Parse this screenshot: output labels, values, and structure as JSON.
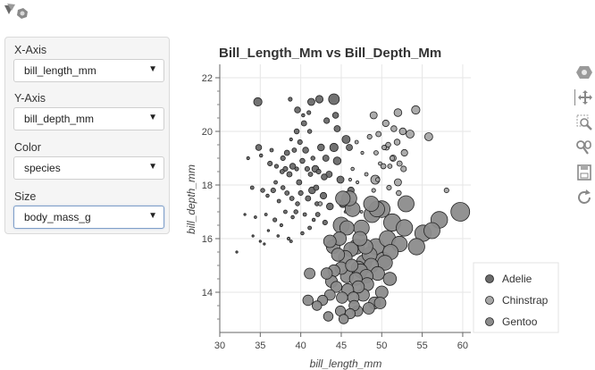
{
  "controls": {
    "x_axis": {
      "label": "X-Axis",
      "value": "bill_length_mm"
    },
    "y_axis": {
      "label": "Y-Axis",
      "value": "bill_depth_mm"
    },
    "color": {
      "label": "Color",
      "value": "species"
    },
    "size": {
      "label": "Size",
      "value": "body_mass_g"
    }
  },
  "toolbar": [
    "bokeh-logo-icon",
    "pan-icon",
    "box-zoom-icon",
    "wheel-zoom-icon",
    "save-icon",
    "reset-icon"
  ],
  "colors": {
    "Adelie": "#6a6a6a",
    "Chinstrap": "#a8a8a8",
    "Gentoo": "#8c8c8c",
    "gridline": "#e6e6e6"
  },
  "chart_data": {
    "type": "scatter",
    "title": "Bill_Length_Mm vs Bill_Depth_Mm",
    "xlabel": "bill_length_mm",
    "ylabel": "bill_depth_mm",
    "xlim": [
      30,
      61
    ],
    "ylim": [
      12.5,
      22.5
    ],
    "xticks": [
      30,
      35,
      40,
      45,
      50,
      55,
      60
    ],
    "yticks": [
      14,
      16,
      18,
      20,
      22
    ],
    "legend": {
      "position": "bottom-right",
      "entries": [
        "Adelie",
        "Chinstrap",
        "Gentoo"
      ]
    },
    "series": [
      {
        "name": "Adelie",
        "points": [
          [
            34.7,
            21.1,
            4300
          ],
          [
            38.7,
            21.2,
            3550
          ],
          [
            41.3,
            21.1,
            4100
          ],
          [
            42.3,
            21.2,
            4150
          ],
          [
            44.1,
            21.2,
            4700
          ],
          [
            39.6,
            20.8,
            3900
          ],
          [
            40.3,
            20.6,
            3450
          ],
          [
            41.0,
            20.7,
            3550
          ],
          [
            44.3,
            20.6,
            3900
          ],
          [
            43.2,
            20.4,
            3850
          ],
          [
            39.5,
            20.0,
            3750
          ],
          [
            40.4,
            20.3,
            3800
          ],
          [
            41.1,
            20.0,
            3600
          ],
          [
            44.5,
            20.1,
            3950
          ],
          [
            38.8,
            19.7,
            3400
          ],
          [
            39.9,
            19.6,
            3700
          ],
          [
            34.8,
            19.4,
            3900
          ],
          [
            36.4,
            19.3,
            3500
          ],
          [
            37.8,
            19.0,
            3700
          ],
          [
            38.3,
            19.2,
            3800
          ],
          [
            39.2,
            19.3,
            3650
          ],
          [
            40.6,
            19.3,
            3900
          ],
          [
            41.5,
            19.0,
            3600
          ],
          [
            42.5,
            19.4,
            4050
          ],
          [
            43.1,
            19.0,
            3950
          ],
          [
            44.1,
            19.4,
            4300
          ],
          [
            45.6,
            19.7,
            4250
          ],
          [
            46.0,
            19.4,
            3950
          ],
          [
            33.5,
            19.0,
            3400
          ],
          [
            35.1,
            19.1,
            3450
          ],
          [
            36.2,
            18.8,
            3700
          ],
          [
            37.0,
            18.7,
            3550
          ],
          [
            37.7,
            18.5,
            3650
          ],
          [
            38.1,
            18.6,
            3700
          ],
          [
            38.6,
            18.4,
            3800
          ],
          [
            39.0,
            18.7,
            3900
          ],
          [
            39.5,
            18.6,
            3550
          ],
          [
            40.2,
            18.9,
            3750
          ],
          [
            40.8,
            18.6,
            3700
          ],
          [
            41.2,
            18.4,
            3650
          ],
          [
            41.8,
            18.6,
            4050
          ],
          [
            42.2,
            18.5,
            3700
          ],
          [
            42.9,
            18.3,
            3900
          ],
          [
            43.5,
            18.4,
            3950
          ],
          [
            44.9,
            18.2,
            4100
          ],
          [
            46.2,
            17.8,
            4000
          ],
          [
            34.0,
            17.9,
            3500
          ],
          [
            35.3,
            17.8,
            3600
          ],
          [
            35.9,
            17.6,
            3450
          ],
          [
            36.6,
            17.8,
            3700
          ],
          [
            37.3,
            17.4,
            3500
          ],
          [
            37.8,
            17.9,
            3600
          ],
          [
            38.3,
            17.7,
            3650
          ],
          [
            38.9,
            17.5,
            3650
          ],
          [
            39.6,
            17.3,
            3600
          ],
          [
            40.0,
            17.7,
            3700
          ],
          [
            40.9,
            17.5,
            3800
          ],
          [
            41.4,
            17.8,
            4050
          ],
          [
            42.0,
            17.3,
            3600
          ],
          [
            42.8,
            17.6,
            4000
          ],
          [
            43.6,
            17.2,
            4050
          ],
          [
            45.2,
            17.3,
            4150
          ],
          [
            33.1,
            16.9,
            3200
          ],
          [
            34.4,
            16.8,
            3325
          ],
          [
            35.7,
            16.9,
            3350
          ],
          [
            36.8,
            16.7,
            3550
          ],
          [
            37.6,
            16.5,
            3400
          ],
          [
            38.1,
            17.0,
            3500
          ],
          [
            39.0,
            16.8,
            3450
          ],
          [
            40.5,
            16.9,
            3500
          ],
          [
            41.6,
            16.7,
            3450
          ],
          [
            42.1,
            16.9,
            3650
          ],
          [
            43.0,
            16.6,
            3700
          ],
          [
            34.1,
            16.1,
            3150
          ],
          [
            35.0,
            15.9,
            3200
          ],
          [
            36.0,
            16.3,
            3275
          ],
          [
            37.2,
            16.1,
            3300
          ],
          [
            38.5,
            16.0,
            3400
          ],
          [
            40.2,
            16.2,
            3450
          ],
          [
            41.1,
            16.4,
            3500
          ],
          [
            32.1,
            15.5,
            3050
          ],
          [
            35.5,
            15.8,
            3150
          ],
          [
            38.8,
            15.9,
            3350
          ],
          [
            39.4,
            17.0,
            3600
          ],
          [
            36.9,
            18.1,
            3500
          ],
          [
            39.8,
            18.1,
            3800
          ],
          [
            41.9,
            17.9,
            3800
          ],
          [
            44.5,
            18.9,
            4200
          ]
        ]
      },
      {
        "name": "Chinstrap",
        "points": [
          [
            49.0,
            20.6,
            4100
          ],
          [
            52.0,
            20.7,
            4200
          ],
          [
            54.2,
            20.8,
            4300
          ],
          [
            50.5,
            20.3,
            4000
          ],
          [
            51.5,
            20.1,
            3900
          ],
          [
            52.6,
            20.0,
            4050
          ],
          [
            55.8,
            19.8,
            4250
          ],
          [
            48.5,
            19.8,
            3700
          ],
          [
            49.6,
            19.9,
            3800
          ],
          [
            50.8,
            19.5,
            3750
          ],
          [
            51.9,
            19.6,
            3900
          ],
          [
            52.8,
            19.2,
            4000
          ],
          [
            53.5,
            19.9,
            4250
          ],
          [
            46.9,
            19.6,
            3500
          ],
          [
            47.6,
            19.2,
            3400
          ],
          [
            49.3,
            19.2,
            3650
          ],
          [
            50.3,
            19.4,
            3675
          ],
          [
            51.3,
            19.0,
            3700
          ],
          [
            52.2,
            18.8,
            3800
          ],
          [
            49.8,
            18.8,
            3500
          ],
          [
            51.0,
            18.7,
            3650
          ],
          [
            52.7,
            18.6,
            3850
          ],
          [
            46.4,
            18.6,
            3450
          ],
          [
            47.0,
            18.1,
            3400
          ],
          [
            48.1,
            18.4,
            3500
          ],
          [
            49.5,
            18.2,
            3600
          ],
          [
            50.9,
            17.9,
            3700
          ],
          [
            52.1,
            17.7,
            3750
          ],
          [
            45.5,
            17.0,
            3300
          ],
          [
            46.1,
            18.2,
            3400
          ],
          [
            47.5,
            17.0,
            3350
          ],
          [
            49.0,
            17.8,
            3550
          ],
          [
            50.2,
            18.7,
            3775
          ],
          [
            45.9,
            17.1,
            3575
          ],
          [
            42.4,
            17.3,
            3600
          ],
          [
            58.0,
            17.8,
            3700
          ],
          [
            50.6,
            19.4,
            3800
          ],
          [
            51.4,
            19.0,
            3950
          ],
          [
            49.2,
            18.2,
            4400
          ],
          [
            52.0,
            18.1,
            4100
          ]
        ]
      },
      {
        "name": "Gentoo",
        "points": [
          [
            45.0,
            16.5,
            5600
          ],
          [
            46.4,
            17.1,
            5400
          ],
          [
            47.5,
            16.4,
            5500
          ],
          [
            48.8,
            16.9,
            5600
          ],
          [
            50.0,
            17.1,
            5700
          ],
          [
            51.3,
            16.6,
            5800
          ],
          [
            55.1,
            16.2,
            5650
          ],
          [
            56.2,
            16.3,
            5600
          ],
          [
            57.1,
            16.7,
            5700
          ],
          [
            59.7,
            17.0,
            6050
          ],
          [
            49.4,
            17.1,
            5500
          ],
          [
            53.0,
            17.3,
            5600
          ],
          [
            48.7,
            17.3,
            5450
          ],
          [
            45.2,
            17.5,
            5350
          ],
          [
            44.0,
            15.7,
            5200
          ],
          [
            44.6,
            15.4,
            5100
          ],
          [
            45.5,
            15.3,
            5200
          ],
          [
            46.2,
            15.6,
            5300
          ],
          [
            46.9,
            15.7,
            5400
          ],
          [
            47.8,
            15.1,
            5500
          ],
          [
            48.5,
            15.4,
            5400
          ],
          [
            49.3,
            15.7,
            5600
          ],
          [
            50.2,
            15.2,
            5500
          ],
          [
            51.1,
            15.5,
            5450
          ],
          [
            52.2,
            15.8,
            5500
          ],
          [
            54.3,
            15.7,
            5650
          ],
          [
            43.2,
            14.7,
            4800
          ],
          [
            44.1,
            14.8,
            4900
          ],
          [
            45.0,
            14.9,
            5000
          ],
          [
            45.7,
            14.6,
            5100
          ],
          [
            46.3,
            15.0,
            5000
          ],
          [
            46.8,
            14.5,
            5050
          ],
          [
            47.4,
            14.8,
            5200
          ],
          [
            48.1,
            14.6,
            5150
          ],
          [
            48.7,
            15.0,
            5300
          ],
          [
            49.5,
            14.7,
            5200
          ],
          [
            50.4,
            15.1,
            5400
          ],
          [
            51.0,
            14.5,
            5100
          ],
          [
            42.7,
            13.7,
            4600
          ],
          [
            43.6,
            13.9,
            4700
          ],
          [
            44.4,
            14.2,
            4750
          ],
          [
            45.1,
            13.8,
            4800
          ],
          [
            45.8,
            14.1,
            4900
          ],
          [
            46.5,
            13.8,
            4800
          ],
          [
            47.1,
            14.2,
            4950
          ],
          [
            47.7,
            13.9,
            5000
          ],
          [
            48.2,
            14.3,
            5100
          ],
          [
            49.1,
            13.6,
            4900
          ],
          [
            50.0,
            14.0,
            5000
          ],
          [
            40.9,
            13.7,
            4650
          ],
          [
            42.0,
            13.5,
            4500
          ],
          [
            44.9,
            13.3,
            4600
          ],
          [
            46.1,
            13.2,
            4600
          ],
          [
            47.0,
            13.3,
            4700
          ],
          [
            48.4,
            13.4,
            4850
          ],
          [
            45.3,
            13.0,
            4500
          ],
          [
            43.4,
            13.1,
            4500
          ],
          [
            46.6,
            13.5,
            4650
          ],
          [
            49.8,
            13.6,
            4850
          ],
          [
            41.1,
            14.7,
            4700
          ],
          [
            44.8,
            16.0,
            5150
          ],
          [
            47.3,
            16.0,
            5300
          ],
          [
            48.0,
            15.7,
            5350
          ],
          [
            43.6,
            15.9,
            5000
          ],
          [
            45.7,
            16.4,
            5300
          ],
          [
            47.1,
            14.9,
            5250
          ],
          [
            50.7,
            16.0,
            5600
          ],
          [
            46.0,
            17.5,
            5400
          ],
          [
            52.8,
            16.4,
            5650
          ],
          [
            43.8,
            14.4,
            4900
          ]
        ]
      }
    ]
  }
}
